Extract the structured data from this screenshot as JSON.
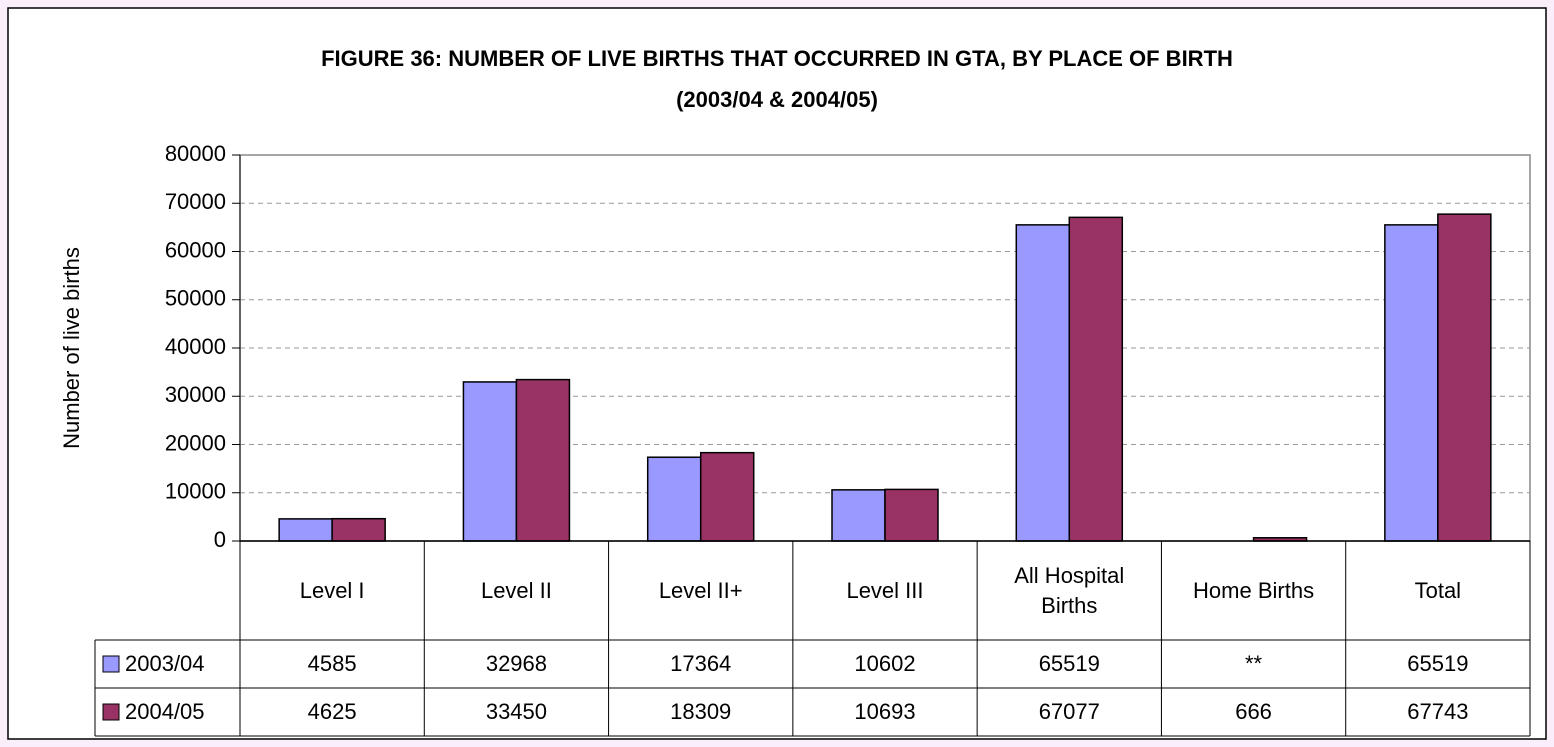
{
  "chart_data": {
    "type": "bar",
    "title": "FIGURE 36: NUMBER OF LIVE BIRTHS THAT OCCURRED IN GTA, BY PLACE OF BIRTH",
    "subtitle": "(2003/04 & 2004/05)",
    "y_label": "Number of live births",
    "categories": [
      "Level I",
      "Level II",
      "Level II+",
      "Level III",
      "All Hospital Births",
      "Home Births",
      "Total"
    ],
    "series": [
      {
        "name": "2003/04",
        "color": "#9999ff",
        "values": [
          4585,
          32968,
          17364,
          10602,
          65519,
          null,
          65519
        ],
        "value_labels": [
          "4585",
          "32968",
          "17364",
          "10602",
          "65519",
          "**",
          "65519"
        ]
      },
      {
        "name": "2004/05",
        "color": "#993366",
        "values": [
          4625,
          33450,
          18309,
          10693,
          67077,
          666,
          67743
        ]
      }
    ],
    "ylim": [
      0,
      80000
    ],
    "yticks": [
      0,
      10000,
      20000,
      30000,
      40000,
      50000,
      60000,
      70000,
      80000
    ],
    "grid": true
  }
}
